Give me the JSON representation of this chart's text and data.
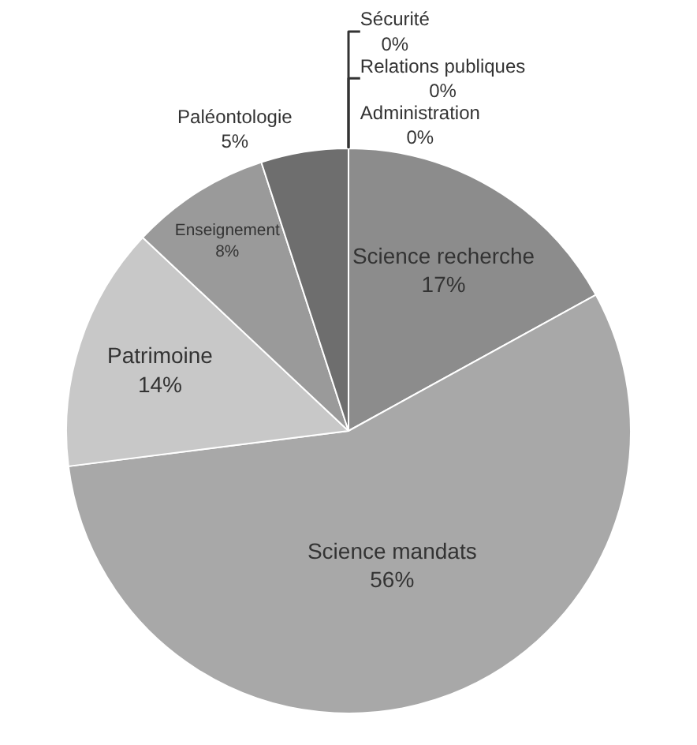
{
  "chart_data": {
    "type": "pie",
    "categories": [
      "Administration",
      "Relations publiques",
      "Science recherche",
      "Science mandats",
      "Patrimoine",
      "Enseignement",
      "Paléontologie",
      "Sécurité"
    ],
    "values": [
      0,
      0,
      17,
      56,
      14,
      8,
      5,
      0
    ],
    "value_labels": [
      "0%",
      "0%",
      "17%",
      "56%",
      "14%",
      "8%",
      "5%",
      "0%"
    ],
    "colors": [
      "#d4d4d4",
      "#d4d4d4",
      "#8c8c8c",
      "#a8a8a8",
      "#c8c8c8",
      "#9a9a9a",
      "#6e6e6e",
      "#e2e2e2"
    ],
    "legend": false
  }
}
